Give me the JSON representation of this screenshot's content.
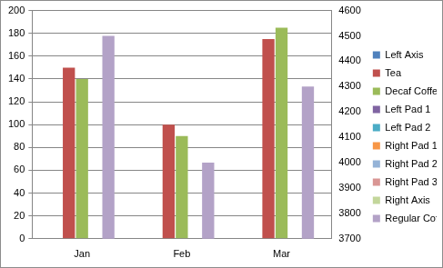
{
  "chart_data": {
    "type": "bar",
    "categories": [
      "Jan",
      "Feb",
      "Mar"
    ],
    "series": [
      {
        "name": "Left Axis",
        "color": "#4f81bd",
        "values": [
          null,
          null,
          null
        ],
        "axis": "y"
      },
      {
        "name": "Tea",
        "color": "#c0504d",
        "values": [
          150,
          100,
          175
        ],
        "axis": "y"
      },
      {
        "name": "Decaf Coffee",
        "color": "#9bbb59",
        "values": [
          140,
          90,
          185
        ],
        "axis": "y"
      },
      {
        "name": "Left Pad 1",
        "color": "#8064a2",
        "values": [
          null,
          null,
          null
        ],
        "axis": "y"
      },
      {
        "name": "Left Pad 2",
        "color": "#4bacc6",
        "values": [
          null,
          null,
          null
        ],
        "axis": "y"
      },
      {
        "name": "Right Pad 1",
        "color": "#f79646",
        "values": [
          null,
          null,
          null
        ],
        "axis": "y2"
      },
      {
        "name": "Right Pad 2",
        "color": "#95b3d7",
        "values": [
          null,
          null,
          null
        ],
        "axis": "y2"
      },
      {
        "name": "Right Pad 3",
        "color": "#d99694",
        "values": [
          null,
          null,
          null
        ],
        "axis": "y2"
      },
      {
        "name": "Right Axis",
        "color": "#c3d69b",
        "values": [
          null,
          null,
          null
        ],
        "axis": "y2"
      },
      {
        "name": "Regular Coffee",
        "color": "#b3a2c7",
        "values": [
          4500,
          4000,
          4300
        ],
        "axis": "y2"
      }
    ],
    "ylim": [
      0,
      200
    ],
    "yticks": [
      0,
      20,
      40,
      60,
      80,
      100,
      120,
      140,
      160,
      180,
      200
    ],
    "y2lim": [
      3700,
      4600
    ],
    "y2ticks": [
      3700,
      3800,
      3900,
      4000,
      4100,
      4200,
      4300,
      4400,
      4500,
      4600
    ],
    "grid": true,
    "legend": "right"
  }
}
